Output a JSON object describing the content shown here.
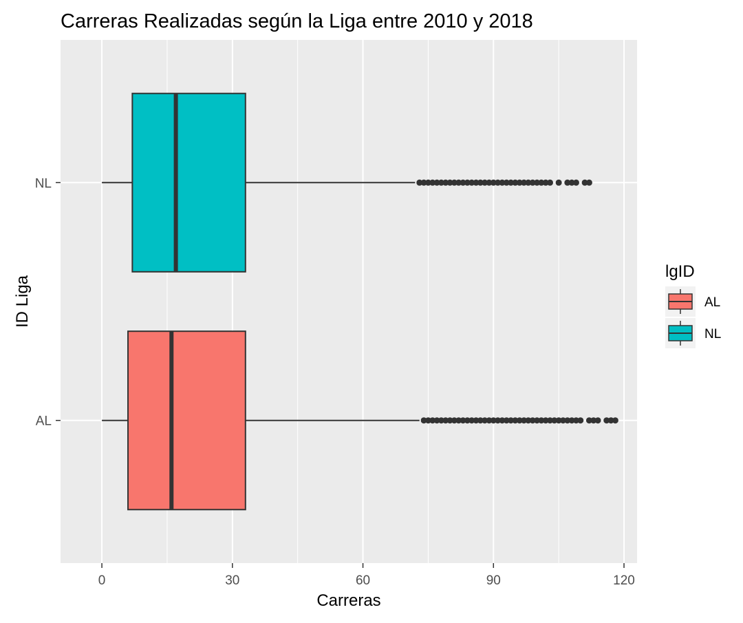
{
  "chart_data": {
    "type": "boxplot",
    "orientation": "horizontal",
    "title": "Carreras Realizadas según la Liga entre 2010 y 2018",
    "xlabel": "Carreras",
    "ylabel": "ID Liga",
    "xlim": [
      -9.5,
      123
    ],
    "x_ticks": [
      0,
      30,
      60,
      90,
      120
    ],
    "x_tick_labels": [
      "0",
      "30",
      "60",
      "90",
      "120"
    ],
    "categories": [
      "AL",
      "NL"
    ],
    "grid": true,
    "legend": {
      "title": "lgID",
      "position": "right",
      "entries": [
        {
          "label": "AL",
          "color": "#F8766D"
        },
        {
          "label": "NL",
          "color": "#00BFC4"
        }
      ]
    },
    "boxes": [
      {
        "category": "AL",
        "color": "#F8766D",
        "whisker_low": 0,
        "q1": 6,
        "median": 16,
        "q3": 33,
        "whisker_high": 73,
        "outliers": [
          74,
          75,
          76,
          77,
          78,
          79,
          80,
          81,
          82,
          83,
          84,
          85,
          86,
          87,
          88,
          89,
          90,
          91,
          92,
          93,
          94,
          95,
          96,
          97,
          98,
          99,
          100,
          101,
          102,
          103,
          104,
          105,
          106,
          107,
          108,
          109,
          110,
          112,
          113,
          114,
          116,
          117,
          118
        ]
      },
      {
        "category": "NL",
        "color": "#00BFC4",
        "whisker_low": 0,
        "q1": 7,
        "median": 17,
        "q3": 33,
        "whisker_high": 72,
        "outliers": [
          73,
          74,
          75,
          76,
          77,
          78,
          79,
          80,
          81,
          82,
          83,
          84,
          85,
          86,
          87,
          88,
          89,
          90,
          91,
          92,
          93,
          94,
          95,
          96,
          97,
          98,
          99,
          100,
          101,
          102,
          103,
          105,
          107,
          108,
          109,
          111,
          112
        ]
      }
    ]
  }
}
